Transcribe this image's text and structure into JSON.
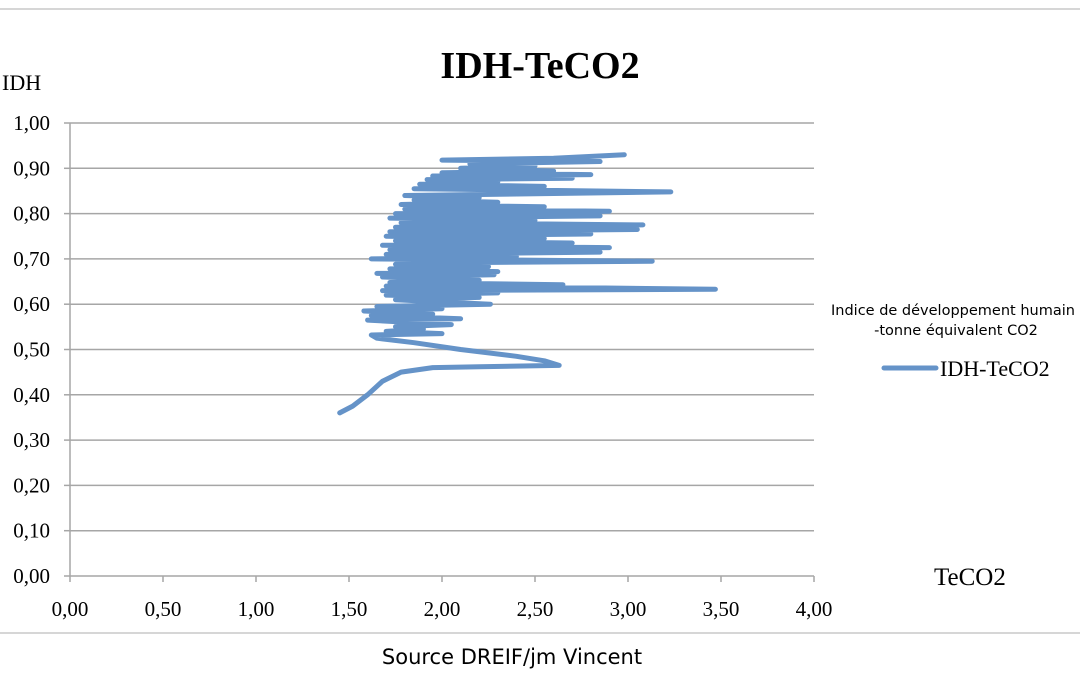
{
  "chart_data": {
    "type": "line",
    "title": "IDH-TeCO2",
    "ylabel": "IDH",
    "xlabel": "TeCO2",
    "source": "Source DREIF/jm Vincent",
    "xlim": [
      0,
      4
    ],
    "ylim": [
      0,
      1
    ],
    "x_ticks": [
      "0,00",
      "0,50",
      "1,00",
      "1,50",
      "2,00",
      "2,50",
      "3,00",
      "3,50",
      "4,00"
    ],
    "y_ticks": [
      "0,00",
      "0,10",
      "0,20",
      "0,30",
      "0,40",
      "0,50",
      "0,60",
      "0,70",
      "0,80",
      "0,90",
      "1,00"
    ],
    "grid": "horizontal",
    "legend": {
      "title_line1": "Indice de développement humain",
      "title_line2": "-tonne équivalent CO2",
      "position": "right"
    },
    "series": [
      {
        "name": "IDH-TeCO2",
        "color": "#6593c8",
        "points": [
          [
            1.45,
            0.36
          ],
          [
            1.52,
            0.375
          ],
          [
            1.6,
            0.4
          ],
          [
            1.68,
            0.43
          ],
          [
            1.78,
            0.45
          ],
          [
            1.95,
            0.46
          ],
          [
            2.2,
            0.462
          ],
          [
            2.63,
            0.465
          ],
          [
            2.55,
            0.475
          ],
          [
            2.4,
            0.485
          ],
          [
            2.1,
            0.5
          ],
          [
            1.85,
            0.515
          ],
          [
            1.65,
            0.525
          ],
          [
            1.62,
            0.532
          ],
          [
            2.0,
            0.535
          ],
          [
            1.7,
            0.54
          ],
          [
            1.9,
            0.545
          ],
          [
            1.75,
            0.55
          ],
          [
            2.05,
            0.555
          ],
          [
            1.6,
            0.565
          ],
          [
            2.1,
            0.568
          ],
          [
            1.62,
            0.575
          ],
          [
            1.95,
            0.578
          ],
          [
            1.58,
            0.585
          ],
          [
            2.0,
            0.59
          ],
          [
            1.65,
            0.595
          ],
          [
            2.26,
            0.6
          ],
          [
            1.75,
            0.61
          ],
          [
            2.2,
            0.615
          ],
          [
            1.7,
            0.62
          ],
          [
            2.3,
            0.625
          ],
          [
            1.68,
            0.63
          ],
          [
            3.47,
            0.633
          ],
          [
            2.6,
            0.637
          ],
          [
            1.7,
            0.64
          ],
          [
            2.65,
            0.643
          ],
          [
            1.72,
            0.648
          ],
          [
            2.2,
            0.653
          ],
          [
            1.68,
            0.66
          ],
          [
            2.28,
            0.665
          ],
          [
            1.65,
            0.668
          ],
          [
            2.3,
            0.672
          ],
          [
            1.72,
            0.678
          ],
          [
            2.25,
            0.683
          ],
          [
            1.75,
            0.688
          ],
          [
            2.2,
            0.692
          ],
          [
            3.13,
            0.695
          ],
          [
            1.62,
            0.7
          ],
          [
            2.4,
            0.705
          ],
          [
            1.7,
            0.71
          ],
          [
            2.85,
            0.715
          ],
          [
            1.72,
            0.72
          ],
          [
            2.9,
            0.725
          ],
          [
            1.68,
            0.73
          ],
          [
            2.7,
            0.735
          ],
          [
            1.75,
            0.74
          ],
          [
            2.55,
            0.745
          ],
          [
            1.7,
            0.75
          ],
          [
            2.8,
            0.755
          ],
          [
            1.72,
            0.76
          ],
          [
            3.05,
            0.765
          ],
          [
            1.75,
            0.77
          ],
          [
            3.08,
            0.775
          ],
          [
            1.78,
            0.78
          ],
          [
            2.5,
            0.785
          ],
          [
            1.72,
            0.79
          ],
          [
            2.85,
            0.795
          ],
          [
            1.75,
            0.8
          ],
          [
            2.9,
            0.805
          ],
          [
            1.8,
            0.81
          ],
          [
            2.55,
            0.815
          ],
          [
            1.78,
            0.82
          ],
          [
            2.3,
            0.825
          ],
          [
            1.85,
            0.83
          ],
          [
            2.2,
            0.835
          ],
          [
            1.8,
            0.84
          ],
          [
            3.23,
            0.848
          ],
          [
            1.85,
            0.855
          ],
          [
            2.55,
            0.86
          ],
          [
            1.88,
            0.865
          ],
          [
            2.3,
            0.87
          ],
          [
            1.92,
            0.875
          ],
          [
            2.7,
            0.878
          ],
          [
            1.95,
            0.883
          ],
          [
            2.8,
            0.886
          ],
          [
            2.0,
            0.89
          ],
          [
            2.6,
            0.894
          ],
          [
            2.1,
            0.9
          ],
          [
            2.5,
            0.905
          ],
          [
            2.15,
            0.91
          ],
          [
            2.85,
            0.915
          ],
          [
            2.0,
            0.918
          ],
          [
            2.6,
            0.922
          ],
          [
            2.98,
            0.93
          ]
        ]
      }
    ]
  }
}
